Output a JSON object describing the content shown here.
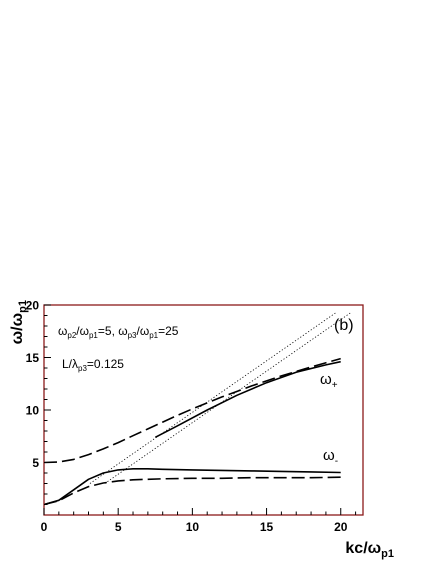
{
  "chart_data": {
    "type": "line",
    "xlim": [
      0,
      21.5
    ],
    "ylim": [
      0,
      20
    ],
    "x_ticks": [
      0,
      5,
      10,
      15,
      20
    ],
    "y_ticks": [
      5,
      10,
      15,
      20
    ],
    "xlabel": {
      "main": "kc/ω",
      "sub": "p1"
    },
    "ylabel": {
      "main": "ω/ω",
      "sub": "p1"
    },
    "panel_label": "(b)",
    "params_line1": [
      {
        "t": "ω"
      },
      {
        "t": "p2",
        "sub": true
      },
      {
        "t": "/ω"
      },
      {
        "t": "p1",
        "sub": true
      },
      {
        "t": "=5, ω"
      },
      {
        "t": "p3",
        "sub": true
      },
      {
        "t": "/ω"
      },
      {
        "t": "p1",
        "sub": true
      },
      {
        "t": "=25"
      }
    ],
    "params_line2": [
      {
        "t": "L/λ"
      },
      {
        "t": "p3",
        "sub": true
      },
      {
        "t": "=0.125"
      }
    ],
    "branch_plus": {
      "main": "ω",
      "sub": "+"
    },
    "branch_minus": {
      "main": "ω",
      "sub": "-"
    },
    "colors": {
      "frame": "#8b1a1a",
      "ink": "#000000"
    },
    "series": [
      {
        "style": "dotted",
        "x": [
          3.1,
          19.7
        ],
        "y": [
          3.0,
          19.3
        ]
      },
      {
        "style": "dotted",
        "x": [
          4.1,
          20.7
        ],
        "y": [
          3.0,
          19.3
        ]
      },
      {
        "style": "solid",
        "x": [
          7.5,
          9,
          11,
          13,
          15,
          17,
          19,
          20
        ],
        "y": [
          7.4,
          8.5,
          10.0,
          11.4,
          12.6,
          13.6,
          14.3,
          14.6
        ]
      },
      {
        "style": "dashed",
        "x": [
          0,
          1,
          2,
          3,
          4,
          5,
          6,
          7,
          8,
          9,
          10,
          12,
          14,
          16,
          18,
          20
        ],
        "y": [
          5.0,
          5.05,
          5.3,
          5.75,
          6.3,
          6.9,
          7.55,
          8.2,
          8.85,
          9.5,
          10.1,
          11.25,
          12.3,
          13.25,
          14.1,
          14.9
        ]
      },
      {
        "style": "solid",
        "x": [
          0,
          1,
          2,
          3,
          4,
          5,
          6,
          7,
          8,
          10,
          12,
          14,
          16,
          18,
          20
        ],
        "y": [
          1.0,
          1.4,
          2.4,
          3.4,
          4.0,
          4.3,
          4.4,
          4.4,
          4.35,
          4.3,
          4.25,
          4.2,
          4.15,
          4.1,
          4.05
        ]
      },
      {
        "style": "dashed",
        "x": [
          0,
          1,
          2,
          3,
          4,
          5,
          6,
          7,
          8,
          10,
          12,
          14,
          16,
          18,
          20
        ],
        "y": [
          1.0,
          1.35,
          2.1,
          2.7,
          3.05,
          3.25,
          3.35,
          3.4,
          3.45,
          3.5,
          3.5,
          3.55,
          3.55,
          3.55,
          3.6
        ]
      }
    ]
  }
}
